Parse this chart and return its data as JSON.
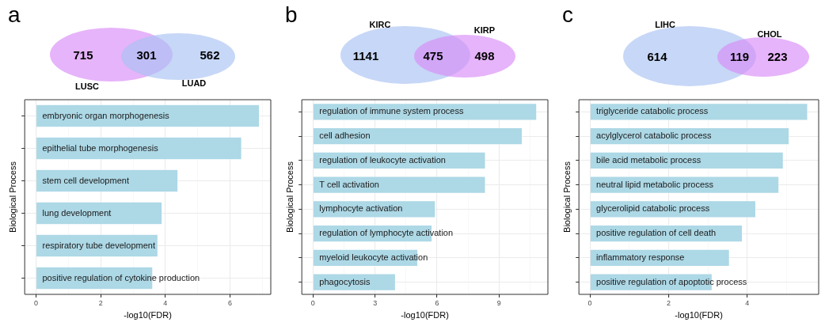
{
  "chart_data": [
    {
      "type": "other",
      "title": "a",
      "annotations": [
        "LUSC",
        "LUAD",
        "715",
        "301",
        "562"
      ]
    },
    {
      "type": "bar",
      "orientation": "horizontal",
      "xlabel": "-log10(FDR)",
      "ylabel": "Biological Process",
      "color": "#add8e6",
      "tick_labels": "x",
      "grid": true,
      "categories": [
        "embryonic organ morphogenesis",
        "epithelial tube morphogenesis",
        "stem cell development",
        "lung development",
        "respiratory tube development",
        "positive regulation of cytokine production"
      ],
      "values": [
        6.91,
        6.36,
        4.39,
        3.9,
        3.77,
        3.61
      ],
      "xlim": [
        -0.35,
        7.26
      ],
      "xticks": [
        0,
        {
          "value": 1,
          "label": null
        },
        2,
        {
          "value": 3,
          "label": null
        },
        4,
        {
          "value": 5,
          "label": null
        },
        6,
        {
          "value": 7,
          "label": null
        }
      ]
    },
    {
      "type": "other",
      "title": "b",
      "annotations": [
        "KIRC",
        "KIRP",
        "1141",
        "475",
        "498"
      ]
    },
    {
      "type": "bar",
      "orientation": "horizontal",
      "xlabel": "-log10(FDR)",
      "ylabel": "Biological Process",
      "color": "#add8e6",
      "tick_labels": "x",
      "grid": true,
      "categories": [
        "regulation of immune system process",
        "cell adhesion",
        "regulation of leukocyte activation",
        "T cell activation",
        "lymphocyte activation",
        "regulation of lymphocyte activation",
        "myeloid leukocyte activation",
        "phagocytosis"
      ],
      "values": [
        10.82,
        10.12,
        8.34,
        8.34,
        5.92,
        5.76,
        5.07,
        3.99
      ],
      "xlim": [
        -0.54,
        11.36
      ],
      "xticks": [
        0,
        {
          "value": 1.5,
          "label": null
        },
        3,
        {
          "value": 4.5,
          "label": null
        },
        6,
        {
          "value": 7.5,
          "label": null
        },
        9,
        {
          "value": 10.5,
          "label": null
        }
      ]
    },
    {
      "type": "other",
      "title": "c",
      "annotations": [
        "LIHC",
        "CHOL",
        "614",
        "119",
        "223"
      ]
    },
    {
      "type": "bar",
      "orientation": "horizontal",
      "xlabel": "-log10(FDR)",
      "ylabel": "Biological Process",
      "color": "#add8e6",
      "tick_labels": "x",
      "grid": true,
      "categories": [
        "triglyceride catabolic process",
        "acylglycerol catabolic process",
        "bile acid metabolic process",
        "neutral lipid metabolic process",
        "glycerolipid catabolic process",
        "positive regulation of cell death",
        "inflammatory response",
        "positive regulation of apoptotic process"
      ],
      "values": [
        5.54,
        5.07,
        4.92,
        4.81,
        4.22,
        3.88,
        3.55,
        3.11
      ],
      "xlim": [
        -0.28,
        5.82
      ],
      "xticks": [
        0,
        {
          "value": 1,
          "label": null
        },
        2,
        {
          "value": 3,
          "label": null
        },
        4,
        {
          "value": 5,
          "label": null
        }
      ]
    }
  ]
}
